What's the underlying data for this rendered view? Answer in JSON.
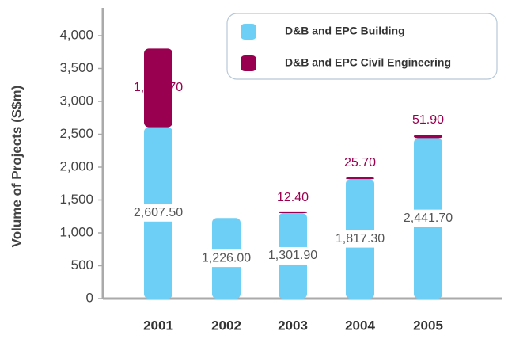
{
  "chart_data": {
    "type": "stacked_bar",
    "y_axis_label": "Volume of Projects (S$m)",
    "categories": [
      "2001",
      "2002",
      "2003",
      "2004",
      "2005"
    ],
    "series": [
      {
        "name": "D&B and EPC Building",
        "color": "#6dcff6",
        "values": [
          2607.5,
          1226.0,
          1301.9,
          1817.3,
          2441.7
        ],
        "value_labels": [
          "2,607.50",
          "1,226.00",
          "1,301.90",
          "1,817.30",
          "2,441.70"
        ]
      },
      {
        "name": "D&B and EPC Civil Engineering",
        "color": "#990050",
        "values": [
          1195.7,
          null,
          12.4,
          25.7,
          51.9
        ],
        "value_labels": [
          "1,195.70",
          null,
          "12.40",
          "25.70",
          "51.90"
        ]
      }
    ],
    "ylim": [
      0,
      4000
    ],
    "yticks": [
      0,
      500,
      {
        "value": 1000,
        "label": "1,000"
      },
      {
        "value": 1500,
        "label": "1,500"
      },
      {
        "value": 2000,
        "label": "2,000"
      },
      {
        "value": 2500,
        "label": "2,500"
      },
      {
        "value": 3000,
        "label": "3,000"
      },
      {
        "value": 3500,
        "label": "3,500"
      },
      {
        "value": 4000,
        "label": "4,000"
      }
    ]
  }
}
